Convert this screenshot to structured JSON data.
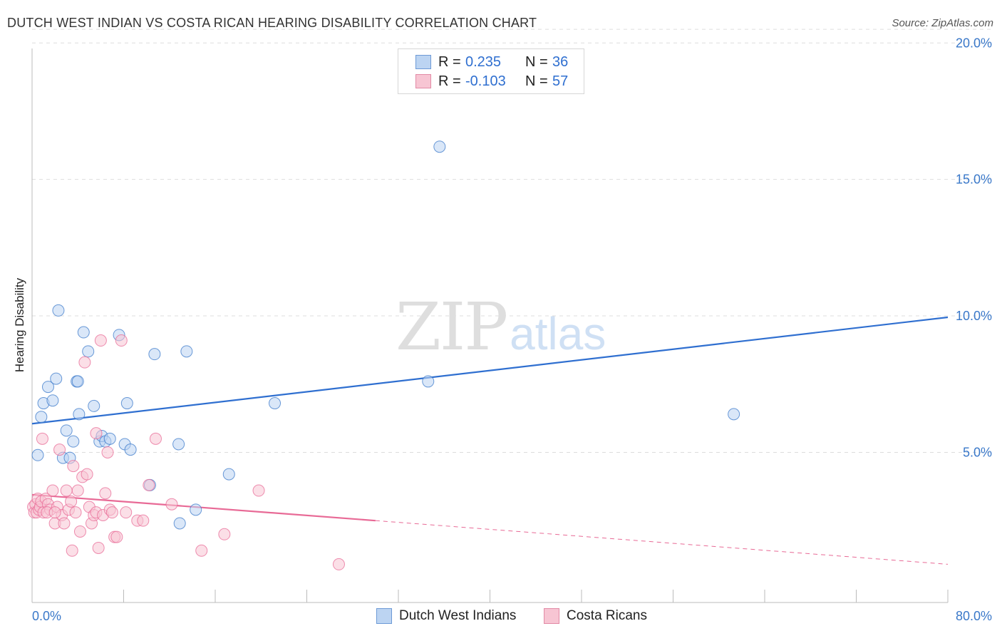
{
  "title": "DUTCH WEST INDIAN VS COSTA RICAN HEARING DISABILITY CORRELATION CHART",
  "source": "Source: ZipAtlas.com",
  "watermark": {
    "zip": "ZIP",
    "atlas": "atlas"
  },
  "legend": {
    "r_label": "R =",
    "n_label": "N =",
    "rows": [
      {
        "r": "0.235",
        "n": "36"
      },
      {
        "r": "-0.103",
        "n": "57"
      }
    ]
  },
  "colors": {
    "blue": "#3a78c9",
    "blue_fill": "#bcd4f2",
    "pink": "#e86a96",
    "pink_fill": "#f7c5d3",
    "grid": "#dddddd",
    "tick_text": "#3a78c9"
  },
  "chart_data": {
    "type": "scatter",
    "title": "DUTCH WEST INDIAN VS COSTA RICAN HEARING DISABILITY CORRELATION CHART",
    "xlabel": "",
    "ylabel": "Hearing Disability",
    "xlim": [
      0,
      80
    ],
    "ylim": [
      0,
      20.5
    ],
    "x_tick_labels": [
      "0.0%",
      "80.0%"
    ],
    "y_ticks": [
      5,
      10,
      15,
      20
    ],
    "y_tick_labels": [
      "5.0%",
      "10.0%",
      "15.0%",
      "20.0%"
    ],
    "legend_position": "bottom-center",
    "series": [
      {
        "name": "Dutch West Indians",
        "color": "#3a78c9",
        "points": [
          [
            0.5,
            4.9
          ],
          [
            0.8,
            6.3
          ],
          [
            1.0,
            6.8
          ],
          [
            1.4,
            7.4
          ],
          [
            1.8,
            6.9
          ],
          [
            2.1,
            7.7
          ],
          [
            2.3,
            10.2
          ],
          [
            2.7,
            4.8
          ],
          [
            3.0,
            5.8
          ],
          [
            3.3,
            4.8
          ],
          [
            3.6,
            5.4
          ],
          [
            3.9,
            7.6
          ],
          [
            4.1,
            6.4
          ],
          [
            4.5,
            9.4
          ],
          [
            4.9,
            8.7
          ],
          [
            5.4,
            6.7
          ],
          [
            5.9,
            5.4
          ],
          [
            6.1,
            5.6
          ],
          [
            6.4,
            5.4
          ],
          [
            6.8,
            5.5
          ],
          [
            7.6,
            9.3
          ],
          [
            8.1,
            5.3
          ],
          [
            8.3,
            6.8
          ],
          [
            8.6,
            5.1
          ],
          [
            10.3,
            3.8
          ],
          [
            10.7,
            8.6
          ],
          [
            12.8,
            5.3
          ],
          [
            12.9,
            2.4
          ],
          [
            13.5,
            8.7
          ],
          [
            14.3,
            2.9
          ],
          [
            17.2,
            4.2
          ],
          [
            21.2,
            6.8
          ],
          [
            34.6,
            7.6
          ],
          [
            35.6,
            16.2
          ],
          [
            61.3,
            6.4
          ],
          [
            4.0,
            7.6
          ]
        ]
      },
      {
        "name": "Costa Ricans",
        "color": "#e86a96",
        "points": [
          [
            0.1,
            3.0
          ],
          [
            0.2,
            2.8
          ],
          [
            0.3,
            3.1
          ],
          [
            0.4,
            2.8
          ],
          [
            0.5,
            3.3
          ],
          [
            0.6,
            2.9
          ],
          [
            0.7,
            3.0
          ],
          [
            0.8,
            3.2
          ],
          [
            1.0,
            2.8
          ],
          [
            1.2,
            3.3
          ],
          [
            1.4,
            3.1
          ],
          [
            1.6,
            2.9
          ],
          [
            1.8,
            3.6
          ],
          [
            2.0,
            2.4
          ],
          [
            2.2,
            3.0
          ],
          [
            2.4,
            5.1
          ],
          [
            2.6,
            2.7
          ],
          [
            2.8,
            2.4
          ],
          [
            3.0,
            3.6
          ],
          [
            3.2,
            2.9
          ],
          [
            3.4,
            3.2
          ],
          [
            3.5,
            1.4
          ],
          [
            3.6,
            4.5
          ],
          [
            3.8,
            2.8
          ],
          [
            4.0,
            3.6
          ],
          [
            4.2,
            2.1
          ],
          [
            4.4,
            4.1
          ],
          [
            4.6,
            8.3
          ],
          [
            4.8,
            4.2
          ],
          [
            5.0,
            3.0
          ],
          [
            5.2,
            2.4
          ],
          [
            5.4,
            2.7
          ],
          [
            5.6,
            2.8
          ],
          [
            5.8,
            1.5
          ],
          [
            6.0,
            9.1
          ],
          [
            6.2,
            2.7
          ],
          [
            6.4,
            3.5
          ],
          [
            6.6,
            5.0
          ],
          [
            6.8,
            2.9
          ],
          [
            7.0,
            2.8
          ],
          [
            7.2,
            1.9
          ],
          [
            7.4,
            1.9
          ],
          [
            7.8,
            9.1
          ],
          [
            8.2,
            2.8
          ],
          [
            9.2,
            2.5
          ],
          [
            9.7,
            2.5
          ],
          [
            10.2,
            3.8
          ],
          [
            10.8,
            5.5
          ],
          [
            12.2,
            3.1
          ],
          [
            14.8,
            1.4
          ],
          [
            16.8,
            2.0
          ],
          [
            19.8,
            3.6
          ],
          [
            26.8,
            0.9
          ],
          [
            0.9,
            5.5
          ],
          [
            1.3,
            2.8
          ],
          [
            5.6,
            5.7
          ],
          [
            2.0,
            2.8
          ]
        ]
      }
    ],
    "trendlines": [
      {
        "series": "Dutch West Indians",
        "x1": 0,
        "y1": 6.05,
        "x2": 80,
        "y2": 9.95,
        "style": "solid"
      },
      {
        "series": "Costa Ricans",
        "x1": 0,
        "y1": 3.45,
        "x2": 30,
        "y2": 2.5,
        "style": "solid"
      },
      {
        "series": "Costa Ricans",
        "x1": 30,
        "y1": 2.5,
        "x2": 80,
        "y2": 0.9,
        "style": "dashed"
      }
    ]
  }
}
